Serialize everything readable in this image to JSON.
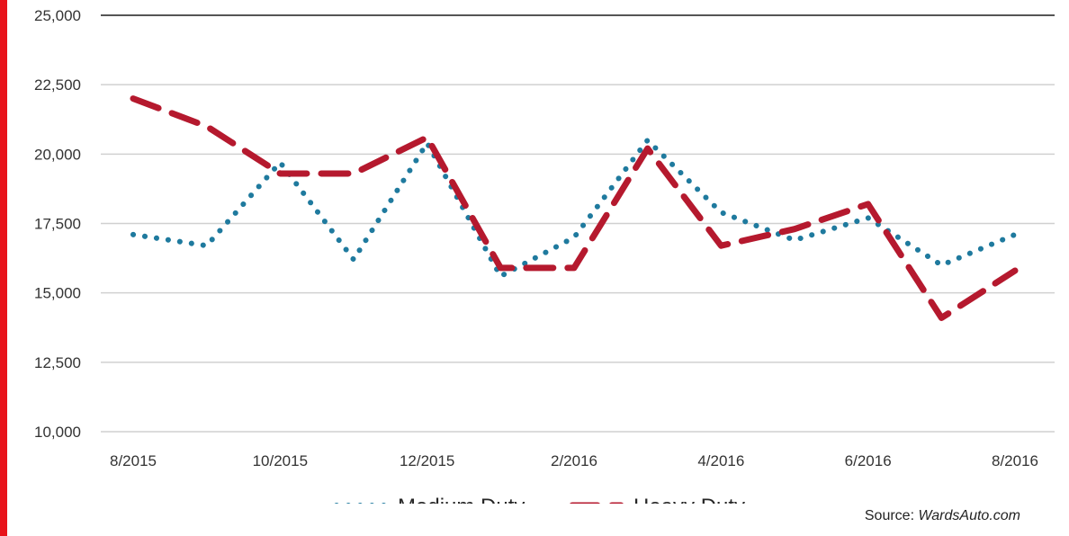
{
  "chart_data": {
    "type": "line",
    "x": [
      "8/2015",
      "9/2015",
      "10/2015",
      "11/2015",
      "12/2015",
      "1/2016",
      "2/2016",
      "3/2016",
      "4/2016",
      "5/2016",
      "6/2016",
      "7/2016",
      "8/2016"
    ],
    "x_tick_labels": [
      "8/2015",
      "10/2015",
      "12/2015",
      "2/2016",
      "4/2016",
      "6/2016",
      "8/2016"
    ],
    "y_tick_labels": [
      "10,000",
      "12,500",
      "15,000",
      "17,500",
      "20,000",
      "22,500",
      "25,000"
    ],
    "ylim": [
      10000,
      25000
    ],
    "ystep": 2500,
    "grid": "horizontal",
    "legend_position": "bottom",
    "series": [
      {
        "name": "Medium Duty",
        "style": "dotted",
        "color": "#1f7a9e",
        "values": [
          17100,
          16700,
          19700,
          16200,
          20400,
          15600,
          17000,
          20500,
          17900,
          16900,
          17700,
          16000,
          17100
        ]
      },
      {
        "name": "Heavy Duty",
        "style": "dashed",
        "color": "#b5192e",
        "values": [
          22000,
          21000,
          19300,
          19300,
          20600,
          15900,
          15900,
          20200,
          16700,
          17300,
          18200,
          14100,
          15800
        ]
      }
    ]
  },
  "source": {
    "prefix": "Source: ",
    "name": "WardsAuto.com"
  },
  "colors": {
    "grid": "#d0d0d0",
    "accent_bar": "#e8141b"
  }
}
